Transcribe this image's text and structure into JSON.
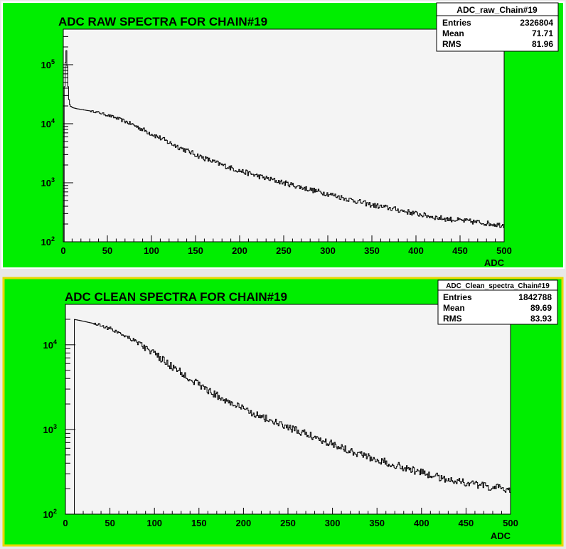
{
  "chart_data": [
    {
      "type": "line",
      "title": "ADC RAW SPECTRA FOR CHAIN#19",
      "xlabel": "ADC",
      "ylabel": "",
      "xlim": [
        0,
        500
      ],
      "ylim": [
        100,
        400000
      ],
      "y_scale": "log",
      "x_ticks": [
        0,
        50,
        100,
        150,
        200,
        250,
        300,
        350,
        400,
        450,
        500
      ],
      "y_ticks": [
        {
          "value": 100,
          "label": "10^2"
        },
        {
          "value": 1000,
          "label": "10^3"
        },
        {
          "value": 10000,
          "label": "10^4"
        },
        {
          "value": 100000,
          "label": "10^5"
        }
      ],
      "legend": "none",
      "colors": {
        "frame": "#00ee00",
        "plot": "#f4f4f4",
        "line": "#000000"
      },
      "stats": {
        "name": "ADC_raw_Chain#19",
        "rows": [
          {
            "label": "Entries",
            "value": "2326804"
          },
          {
            "label": "Mean",
            "value": "71.71"
          },
          {
            "label": "RMS",
            "value": "81.96"
          }
        ]
      },
      "series": [
        {
          "x": [
            1,
            2,
            3,
            4,
            5,
            6,
            7,
            8,
            9,
            10,
            12,
            15,
            20,
            30,
            40,
            50,
            60,
            70,
            80,
            90,
            100,
            120,
            140,
            160,
            180,
            200,
            225,
            250,
            275,
            300,
            325,
            350,
            375,
            400,
            425,
            450,
            475,
            500
          ],
          "values": [
            30000,
            60000,
            200000,
            150000,
            60000,
            30000,
            22000,
            20000,
            19500,
            19000,
            18500,
            18000,
            17500,
            16500,
            15500,
            14000,
            12500,
            11000,
            9500,
            8000,
            6800,
            4800,
            3500,
            2600,
            2000,
            1600,
            1250,
            1000,
            800,
            650,
            520,
            420,
            360,
            300,
            255,
            230,
            210,
            190
          ]
        }
      ]
    },
    {
      "type": "line",
      "title": "ADC CLEAN SPECTRA FOR CHAIN#19",
      "xlabel": "ADC",
      "ylabel": "",
      "xlim": [
        0,
        500
      ],
      "ylim": [
        100,
        30000
      ],
      "y_scale": "log",
      "x_ticks": [
        0,
        50,
        100,
        150,
        200,
        250,
        300,
        350,
        400,
        450,
        500
      ],
      "y_ticks": [
        {
          "value": 100,
          "label": "10^2"
        },
        {
          "value": 1000,
          "label": "10^3"
        },
        {
          "value": 10000,
          "label": "10^4"
        }
      ],
      "legend": "none",
      "colors": {
        "frame": "#00ee00",
        "plot": "#f4f4f4",
        "line": "#000000"
      },
      "stats": {
        "name": "ADC_Clean_spectra_Chain#19",
        "rows": [
          {
            "label": "Entries",
            "value": "1842788"
          },
          {
            "label": "Mean",
            "value": "89.69"
          },
          {
            "label": "RMS",
            "value": "83.93"
          }
        ]
      },
      "series": [
        {
          "x": [
            10,
            11,
            15,
            20,
            30,
            40,
            50,
            60,
            70,
            80,
            90,
            100,
            120,
            140,
            160,
            180,
            200,
            225,
            250,
            275,
            300,
            325,
            350,
            375,
            400,
            425,
            450,
            475,
            500
          ],
          "values": [
            20000,
            19800,
            19500,
            19000,
            18000,
            17000,
            15500,
            14000,
            12500,
            11000,
            9200,
            7800,
            5500,
            4000,
            2900,
            2200,
            1750,
            1350,
            1050,
            850,
            680,
            540,
            440,
            370,
            310,
            265,
            235,
            210,
            195
          ]
        }
      ]
    }
  ]
}
